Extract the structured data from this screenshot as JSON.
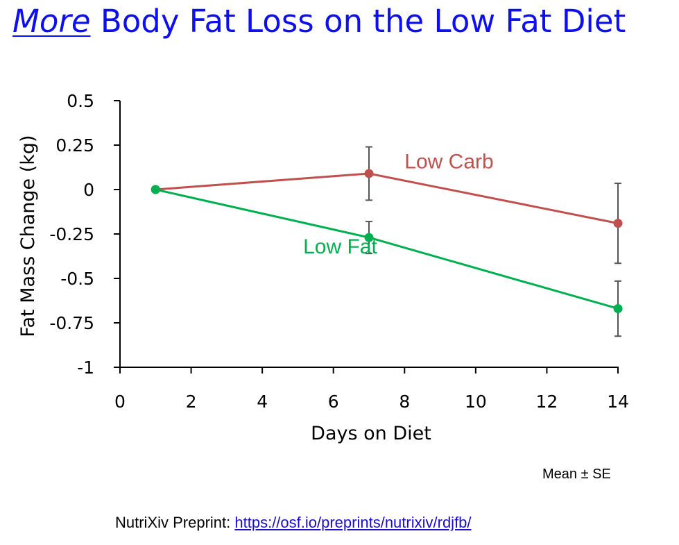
{
  "title": {
    "emphasis": "More",
    "rest": " Body Fat Loss on the Low Fat Diet"
  },
  "note": "Mean ± SE",
  "source": {
    "label": "NutriXiv Preprint: ",
    "link": "https://osf.io/preprints/nutrixiv/rdjfb/"
  },
  "chart_data": {
    "type": "line",
    "title": "",
    "xlabel": "Days on Diet",
    "ylabel": "Fat Mass Change (kg)",
    "xlim": [
      0,
      14
    ],
    "ylim": [
      -1,
      0.5
    ],
    "xticks": [
      0,
      2,
      4,
      6,
      8,
      10,
      12,
      14
    ],
    "yticks": [
      0.5,
      0.25,
      0,
      -0.25,
      -0.5,
      -0.75,
      -1
    ],
    "ytick_labels": [
      "0.5",
      "0.25",
      "0",
      "-0.25",
      "-0.5",
      "-0.75",
      "-1"
    ],
    "grid": false,
    "series": [
      {
        "name": "Low Carb",
        "color": "#c0504d",
        "x": [
          1,
          7,
          14
        ],
        "y": [
          0,
          0.09,
          -0.19
        ],
        "se": [
          0,
          0.15,
          0.225
        ]
      },
      {
        "name": "Low Fat",
        "color": "#00b050",
        "x": [
          1,
          7,
          14
        ],
        "y": [
          0,
          -0.27,
          -0.67
        ],
        "se": [
          0,
          0.09,
          0.155
        ]
      }
    ],
    "annotations": [
      {
        "text": "Low Carb",
        "series": 0,
        "x": 8,
        "y": 0.12
      },
      {
        "text": "Low Fat",
        "series": 1,
        "x": 5.15,
        "y": -0.36
      }
    ]
  }
}
